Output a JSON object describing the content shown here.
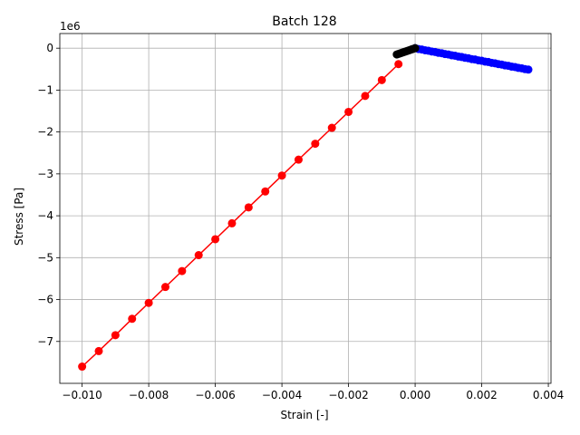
{
  "chart_data": {
    "type": "line",
    "title": "Batch 128",
    "xlabel": "Strain [-]",
    "ylabel": "Stress [Pa]",
    "y_offset_label": "1e6",
    "xlim": [
      -0.01067,
      0.00408
    ],
    "ylim": [
      -8.0,
      0.35
    ],
    "y_scale_factor": 1000000,
    "grid": true,
    "x_ticks": [
      -0.01,
      -0.008,
      -0.006,
      -0.004,
      -0.002,
      0.0,
      0.002,
      0.004
    ],
    "x_tick_labels": [
      "−0.010",
      "−0.008",
      "−0.006",
      "−0.004",
      "−0.002",
      "0.000",
      "0.002",
      "0.004"
    ],
    "y_ticks": [
      -7,
      -6,
      -5,
      -4,
      -3,
      -2,
      -1,
      0
    ],
    "y_tick_labels": [
      "−7",
      "−6",
      "−5",
      "−4",
      "−3",
      "−2",
      "−1",
      "0"
    ],
    "series": [
      {
        "color": "#ff0000",
        "line": true,
        "x": [
          -0.01,
          -0.0095,
          -0.009,
          -0.0085,
          -0.008,
          -0.0075,
          -0.007,
          -0.0065,
          -0.006,
          -0.0055,
          -0.005,
          -0.0045,
          -0.004,
          -0.0035,
          -0.003,
          -0.0025,
          -0.002,
          -0.0015,
          -0.001,
          -0.0005
        ],
        "y": [
          -7.6,
          -7.23,
          -6.85,
          -6.46,
          -6.08,
          -5.7,
          -5.32,
          -4.94,
          -4.56,
          -4.18,
          -3.8,
          -3.42,
          -3.04,
          -2.66,
          -2.28,
          -1.9,
          -1.52,
          -1.14,
          -0.76,
          -0.38
        ]
      },
      {
        "color": "#0000ff",
        "line": true,
        "x": [
          0.0,
          0.0001,
          0.0002,
          0.0003,
          0.0004,
          0.0005,
          0.0006,
          0.0007,
          0.0008,
          0.0009,
          0.001,
          0.0011,
          0.0012,
          0.0013,
          0.0014,
          0.0015,
          0.0016,
          0.0017,
          0.0018,
          0.0019,
          0.002,
          0.0021,
          0.0022,
          0.0023,
          0.0024,
          0.0025,
          0.0026,
          0.0027,
          0.0028,
          0.0029,
          0.003,
          0.0031,
          0.0032,
          0.0033,
          0.0034
        ],
        "y": [
          0.0,
          -0.02,
          -0.03,
          -0.05,
          -0.06,
          -0.08,
          -0.09,
          -0.11,
          -0.12,
          -0.14,
          -0.15,
          -0.17,
          -0.18,
          -0.2,
          -0.21,
          -0.23,
          -0.24,
          -0.26,
          -0.27,
          -0.29,
          -0.3,
          -0.32,
          -0.33,
          -0.35,
          -0.36,
          -0.38,
          -0.39,
          -0.41,
          -0.42,
          -0.44,
          -0.45,
          -0.47,
          -0.48,
          -0.5,
          -0.51
        ]
      },
      {
        "color": "#000000",
        "line": true,
        "x": [
          -0.00055,
          -0.0005,
          -0.00045,
          -0.0004,
          -0.00035,
          -0.0003,
          -0.00025,
          -0.0002,
          -0.00015,
          -0.0001,
          -5e-05,
          0.0
        ],
        "y": [
          -0.15,
          -0.136,
          -0.123,
          -0.109,
          -0.095,
          -0.082,
          -0.068,
          -0.055,
          -0.041,
          -0.027,
          -0.014,
          0.0
        ]
      }
    ]
  }
}
